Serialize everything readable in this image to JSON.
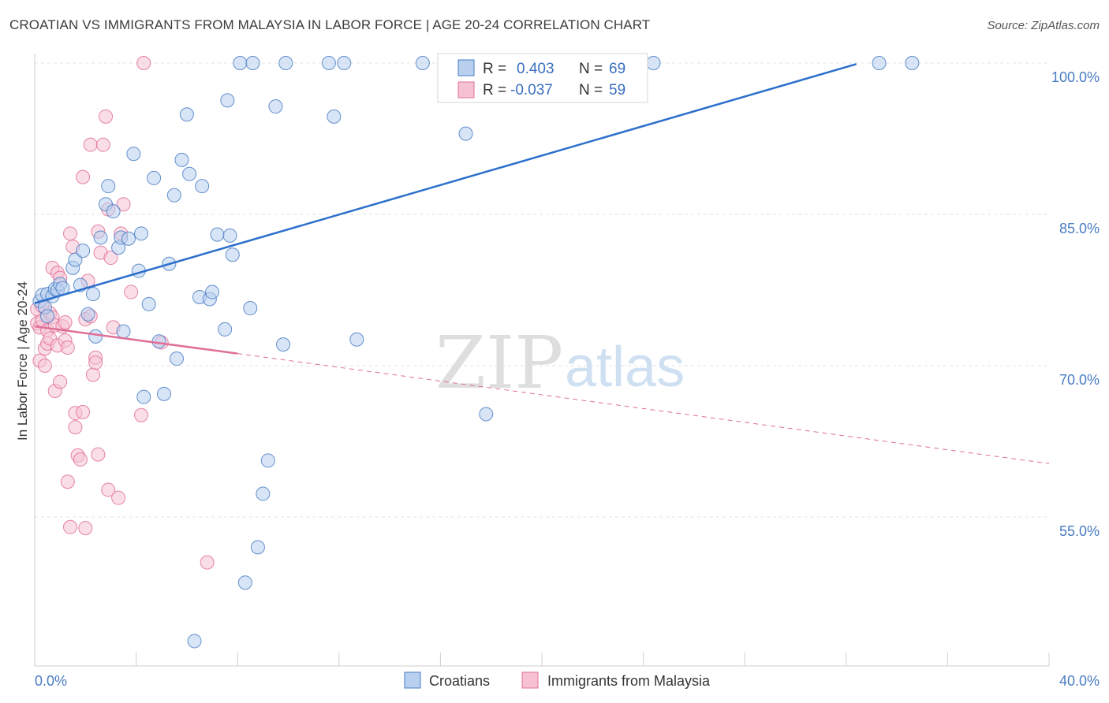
{
  "title": "CROATIAN VS IMMIGRANTS FROM MALAYSIA IN LABOR FORCE | AGE 20-24 CORRELATION CHART",
  "source": "Source: ZipAtlas.com",
  "watermark": {
    "zip": "ZIP",
    "atlas": "atlas"
  },
  "colors": {
    "blue": "#4a7cc4",
    "blue_fill": "#b8d0ee",
    "blue_line": "#2b6fcc",
    "pink": "#e06f98",
    "pink_fill": "#f6c2d3",
    "grid": "#e3e3e3"
  },
  "legend_box": {
    "rows": [
      {
        "r_label": "R =",
        "r_value": "0.403",
        "n_label": "N =",
        "n_value": "69"
      },
      {
        "r_label": "R =",
        "r_value": "-0.037",
        "n_label": "N =",
        "n_value": "59"
      }
    ]
  },
  "bottom_legend": [
    "Croatians",
    "Immigrants from Malaysia"
  ],
  "chart_data": {
    "type": "scatter",
    "xlabel": "",
    "ylabel": "In Labor Force | Age 20-24",
    "xlim": [
      0,
      40
    ],
    "ylim": [
      40,
      101
    ],
    "x_tick_labels": [
      "0.0%",
      "40.0%"
    ],
    "y_ticks": [
      55,
      70,
      85,
      100
    ],
    "y_tick_labels": [
      "55.0%",
      "70.0%",
      "85.0%",
      "100.0%"
    ],
    "grid": true,
    "legend_position": "bottom",
    "series": [
      {
        "name": "Croatians",
        "r": 0.403,
        "n": 69,
        "trend": {
          "x": [
            0,
            32.4
          ],
          "y": [
            76.2,
            99.9
          ],
          "dashed_to": null
        },
        "points": [
          [
            0.2,
            76.4
          ],
          [
            0.3,
            77.0
          ],
          [
            0.4,
            75.8
          ],
          [
            0.5,
            74.9
          ],
          [
            0.5,
            77.1
          ],
          [
            0.7,
            76.9
          ],
          [
            0.8,
            77.6
          ],
          [
            0.9,
            77.5
          ],
          [
            1.0,
            78.1
          ],
          [
            1.1,
            77.7
          ],
          [
            1.5,
            79.7
          ],
          [
            1.6,
            80.5
          ],
          [
            1.8,
            78.0
          ],
          [
            1.9,
            81.4
          ],
          [
            2.1,
            75.1
          ],
          [
            2.3,
            77.1
          ],
          [
            2.4,
            72.9
          ],
          [
            2.6,
            82.7
          ],
          [
            2.8,
            86.0
          ],
          [
            2.9,
            87.8
          ],
          [
            3.1,
            85.3
          ],
          [
            3.3,
            81.7
          ],
          [
            3.4,
            82.7
          ],
          [
            3.5,
            73.4
          ],
          [
            3.7,
            82.6
          ],
          [
            3.9,
            91.0
          ],
          [
            4.1,
            79.4
          ],
          [
            4.2,
            83.1
          ],
          [
            4.3,
            66.9
          ],
          [
            4.5,
            76.1
          ],
          [
            4.7,
            88.6
          ],
          [
            4.9,
            72.4
          ],
          [
            5.1,
            67.2
          ],
          [
            5.3,
            80.1
          ],
          [
            5.5,
            86.9
          ],
          [
            5.6,
            70.7
          ],
          [
            5.8,
            90.4
          ],
          [
            6.0,
            94.9
          ],
          [
            6.1,
            89.0
          ],
          [
            6.3,
            42.7
          ],
          [
            6.5,
            76.8
          ],
          [
            6.6,
            87.8
          ],
          [
            6.9,
            76.6
          ],
          [
            7.0,
            77.3
          ],
          [
            7.2,
            83.0
          ],
          [
            7.5,
            73.6
          ],
          [
            7.6,
            96.3
          ],
          [
            7.7,
            82.9
          ],
          [
            7.8,
            81.0
          ],
          [
            8.1,
            100.0
          ],
          [
            8.3,
            48.5
          ],
          [
            8.5,
            75.7
          ],
          [
            8.6,
            100.0
          ],
          [
            8.8,
            52.0
          ],
          [
            9.0,
            57.3
          ],
          [
            9.2,
            60.6
          ],
          [
            9.5,
            95.7
          ],
          [
            9.8,
            72.1
          ],
          [
            9.9,
            100.0
          ],
          [
            11.6,
            100.0
          ],
          [
            11.8,
            94.7
          ],
          [
            12.2,
            100.0
          ],
          [
            12.7,
            72.6
          ],
          [
            15.3,
            100.0
          ],
          [
            17.0,
            93.0
          ],
          [
            17.8,
            65.2
          ],
          [
            22.5,
            100.0
          ],
          [
            24.4,
            100.0
          ],
          [
            33.3,
            100.0
          ],
          [
            34.6,
            100.0
          ]
        ]
      },
      {
        "name": "Immigrants from Malaysia",
        "r": -0.037,
        "n": 59,
        "trend": {
          "x": [
            0,
            8.0
          ],
          "y": [
            73.9,
            71.2
          ],
          "dashed_to": [
            40,
            60.3
          ]
        },
        "points": [
          [
            0.1,
            74.2
          ],
          [
            0.1,
            75.6
          ],
          [
            0.2,
            70.5
          ],
          [
            0.2,
            73.8
          ],
          [
            0.3,
            74.5
          ],
          [
            0.3,
            75.9
          ],
          [
            0.4,
            70.0
          ],
          [
            0.4,
            71.7
          ],
          [
            0.5,
            72.2
          ],
          [
            0.5,
            73.5
          ],
          [
            0.6,
            75.2
          ],
          [
            0.6,
            72.7
          ],
          [
            0.7,
            74.8
          ],
          [
            0.7,
            79.7
          ],
          [
            0.8,
            67.5
          ],
          [
            0.8,
            74.0
          ],
          [
            0.9,
            79.2
          ],
          [
            0.9,
            72.0
          ],
          [
            1.0,
            78.7
          ],
          [
            1.0,
            68.4
          ],
          [
            1.1,
            73.9
          ],
          [
            1.2,
            74.3
          ],
          [
            1.2,
            72.5
          ],
          [
            1.3,
            71.8
          ],
          [
            1.3,
            58.5
          ],
          [
            1.4,
            54.0
          ],
          [
            1.4,
            83.1
          ],
          [
            1.5,
            81.8
          ],
          [
            1.6,
            65.3
          ],
          [
            1.6,
            63.9
          ],
          [
            1.7,
            61.1
          ],
          [
            1.8,
            60.7
          ],
          [
            1.9,
            65.4
          ],
          [
            1.9,
            88.7
          ],
          [
            2.0,
            53.9
          ],
          [
            2.0,
            74.6
          ],
          [
            2.1,
            78.4
          ],
          [
            2.2,
            91.9
          ],
          [
            2.3,
            69.1
          ],
          [
            2.4,
            70.8
          ],
          [
            2.4,
            70.3
          ],
          [
            2.5,
            83.3
          ],
          [
            2.5,
            61.2
          ],
          [
            2.6,
            81.2
          ],
          [
            2.7,
            91.9
          ],
          [
            2.8,
            94.7
          ],
          [
            2.9,
            57.7
          ],
          [
            2.9,
            85.5
          ],
          [
            3.0,
            80.7
          ],
          [
            3.1,
            73.8
          ],
          [
            3.3,
            56.9
          ],
          [
            3.4,
            83.1
          ],
          [
            3.5,
            86.0
          ],
          [
            3.8,
            77.3
          ],
          [
            4.2,
            65.1
          ],
          [
            4.3,
            100.0
          ],
          [
            5.0,
            72.3
          ],
          [
            6.8,
            50.5
          ],
          [
            2.2,
            74.9
          ]
        ]
      }
    ]
  }
}
